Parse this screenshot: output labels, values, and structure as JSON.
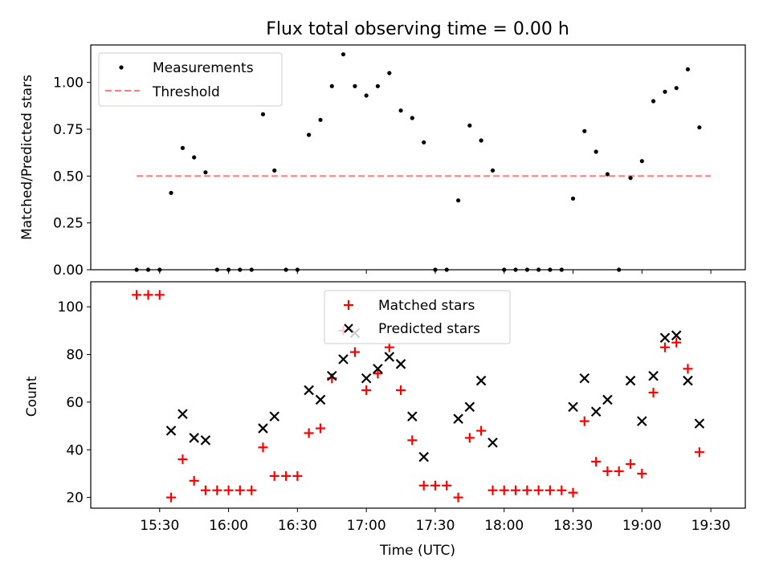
{
  "chart_data": [
    {
      "type": "scatter",
      "title": "Flux total observing time = 0.00 h",
      "xlabel": "",
      "ylabel": "Matched/Predicted stars",
      "xlim": [
        15.0,
        19.75
      ],
      "ylim": [
        0.0,
        1.2
      ],
      "yticks": [
        0.0,
        0.25,
        0.5,
        0.75,
        1.0
      ],
      "ytick_labels": [
        "0.00",
        "0.25",
        "0.50",
        "0.75",
        "1.00"
      ],
      "legend": [
        "Measurements",
        "Threshold"
      ],
      "legend_position": "top-left",
      "threshold": {
        "name": "Threshold",
        "value": 0.5,
        "x_range": [
          15.333,
          19.5
        ],
        "color": "#ff7f7f"
      },
      "series": [
        {
          "name": "Measurements",
          "color": "#000000",
          "x": [
            15.333,
            15.417,
            15.5,
            15.583,
            15.667,
            15.75,
            15.833,
            15.917,
            16.0,
            16.083,
            16.167,
            16.25,
            16.333,
            16.417,
            16.5,
            16.583,
            16.667,
            16.75,
            16.833,
            16.917,
            17.0,
            17.083,
            17.167,
            17.25,
            17.333,
            17.417,
            17.5,
            17.583,
            17.667,
            17.75,
            17.833,
            17.917,
            18.0,
            18.083,
            18.167,
            18.25,
            18.333,
            18.417,
            18.5,
            18.583,
            18.667,
            18.75,
            18.833,
            18.917,
            19.0,
            19.083,
            19.167,
            19.25,
            19.333,
            19.417
          ],
          "y": [
            0.0,
            0.0,
            0.0,
            0.41,
            0.65,
            0.6,
            0.52,
            0.0,
            0.0,
            0.0,
            0.0,
            0.83,
            0.53,
            0.0,
            0.0,
            0.72,
            0.8,
            0.98,
            1.15,
            0.98,
            0.93,
            0.98,
            1.05,
            0.85,
            0.81,
            0.68,
            0.0,
            0.0,
            0.37,
            0.77,
            0.69,
            0.53,
            0.0,
            0.0,
            0.0,
            0.0,
            0.0,
            0.0,
            0.38,
            0.74,
            0.63,
            0.51,
            0.0,
            0.49,
            0.58,
            0.9,
            0.95,
            0.97,
            1.07,
            0.76
          ]
        }
      ]
    },
    {
      "type": "scatter",
      "title": "",
      "xlabel": "Time (UTC)",
      "ylabel": "Count",
      "xlim": [
        15.0,
        19.75
      ],
      "ylim": [
        15.5,
        110.5
      ],
      "yticks": [
        20,
        40,
        60,
        80,
        100
      ],
      "ytick_labels": [
        "20",
        "40",
        "60",
        "80",
        "100"
      ],
      "xticks": [
        15.5,
        16.0,
        16.5,
        17.0,
        17.5,
        18.0,
        18.5,
        19.0,
        19.5
      ],
      "xtick_labels": [
        "15:30",
        "16:00",
        "16:30",
        "17:00",
        "17:30",
        "18:00",
        "18:30",
        "19:00",
        "19:30"
      ],
      "legend": [
        "Matched stars",
        "Predicted stars"
      ],
      "legend_position": "top-center",
      "series": [
        {
          "name": "Matched stars",
          "marker": "plus",
          "color": "#ff0000",
          "x": [
            15.333,
            15.417,
            15.5,
            15.583,
            15.667,
            15.75,
            15.833,
            15.917,
            16.0,
            16.083,
            16.167,
            16.25,
            16.333,
            16.417,
            16.5,
            16.583,
            16.667,
            16.75,
            16.833,
            16.917,
            17.0,
            17.083,
            17.167,
            17.25,
            17.333,
            17.417,
            17.5,
            17.583,
            17.667,
            17.75,
            17.833,
            17.917,
            18.0,
            18.083,
            18.167,
            18.25,
            18.333,
            18.417,
            18.5,
            18.583,
            18.667,
            18.75,
            18.833,
            18.917,
            19.0,
            19.083,
            19.167,
            19.25,
            19.333,
            19.417
          ],
          "y": [
            105,
            105,
            105,
            20,
            36,
            27,
            23,
            23,
            23,
            23,
            23,
            41,
            29,
            29,
            29,
            47,
            49,
            70,
            90,
            81,
            65,
            72,
            83,
            65,
            44,
            25,
            25,
            25,
            20,
            45,
            48,
            23,
            23,
            23,
            23,
            23,
            23,
            23,
            22,
            52,
            35,
            31,
            31,
            34,
            30,
            64,
            83,
            85,
            74,
            39
          ]
        },
        {
          "name": "Predicted stars",
          "marker": "x",
          "color": "#000000",
          "x": [
            15.583,
            15.667,
            15.75,
            15.833,
            16.25,
            16.333,
            16.583,
            16.667,
            16.75,
            16.833,
            16.917,
            17.0,
            17.083,
            17.167,
            17.25,
            17.333,
            17.417,
            17.667,
            17.75,
            17.833,
            17.917,
            18.5,
            18.583,
            18.667,
            18.75,
            18.917,
            19.0,
            19.083,
            19.167,
            19.25,
            19.333,
            19.417
          ],
          "y": [
            48,
            55,
            45,
            44,
            49,
            54,
            65,
            61,
            71,
            78,
            89,
            70,
            74,
            79,
            76,
            54,
            37,
            53,
            58,
            69,
            43,
            58,
            70,
            56,
            61,
            69,
            52,
            71,
            87,
            88,
            69,
            51
          ]
        }
      ]
    }
  ]
}
